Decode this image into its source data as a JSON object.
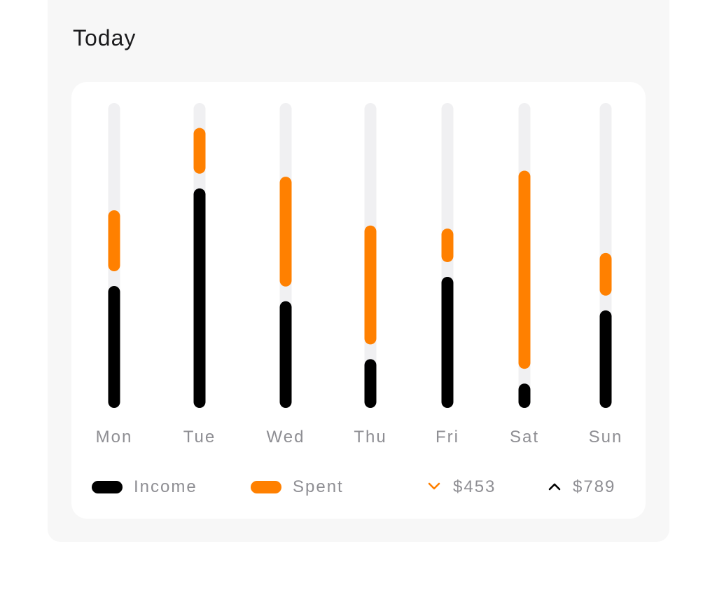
{
  "header": {
    "title": "Today"
  },
  "chart_data": {
    "type": "bar",
    "categories": [
      "Mon",
      "Tue",
      "Wed",
      "Thu",
      "Fri",
      "Sat",
      "Sun"
    ],
    "series": [
      {
        "name": "Income",
        "values": [
          40,
          72,
          35,
          16,
          43,
          8,
          32
        ],
        "color": "#000000"
      },
      {
        "name": "Spent",
        "values": [
          20,
          15,
          36,
          39,
          11,
          65,
          14
        ],
        "color": "#ff8000"
      }
    ],
    "ylim": [
      0,
      100
    ],
    "stacked": true
  },
  "legend": {
    "income_label": "Income",
    "spent_label": "Spent",
    "low_value": "$453",
    "high_value": "$789",
    "low_icon": "chevron-down-icon",
    "high_icon": "chevron-up-icon",
    "low_color": "#ff8000",
    "high_color": "#000000",
    "income_color": "#000000",
    "spent_color": "#ff8000",
    "track_color": "#f0f0f2"
  }
}
